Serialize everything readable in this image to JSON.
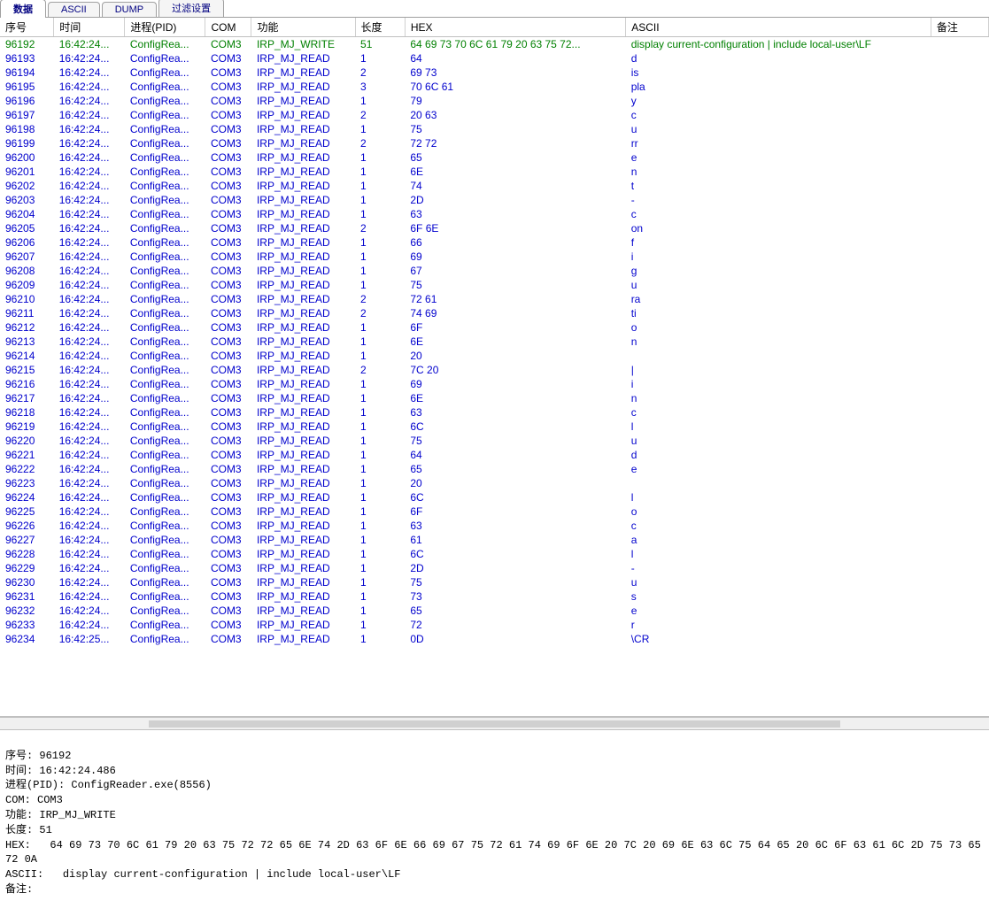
{
  "tabs": [
    {
      "label": "数据",
      "active": true
    },
    {
      "label": "ASCII",
      "active": false
    },
    {
      "label": "DUMP",
      "active": false
    },
    {
      "label": "过滤设置",
      "active": false
    }
  ],
  "columns": [
    {
      "key": "seq",
      "label": "序号",
      "class": "col-seq"
    },
    {
      "key": "time",
      "label": "时间",
      "class": "col-time"
    },
    {
      "key": "pid",
      "label": "进程(PID)",
      "class": "col-pid"
    },
    {
      "key": "com",
      "label": "COM",
      "class": "col-com"
    },
    {
      "key": "func",
      "label": "功能",
      "class": "col-func"
    },
    {
      "key": "len",
      "label": "长度",
      "class": "col-len"
    },
    {
      "key": "hex",
      "label": "HEX",
      "class": "col-hex"
    },
    {
      "key": "ascii",
      "label": "ASCII",
      "class": "col-ascii"
    },
    {
      "key": "note",
      "label": "备注",
      "class": "col-note"
    }
  ],
  "rows": [
    {
      "seq": "96192",
      "time": "16:42:24...",
      "pid": "ConfigRea...",
      "com": "COM3",
      "func": "IRP_MJ_WRITE",
      "len": "51",
      "hex": "64 69 73 70 6C 61 79 20 63 75 72...",
      "ascii": "display current-configuration | include local-user\\LF",
      "note": "",
      "color": "green"
    },
    {
      "seq": "96193",
      "time": "16:42:24...",
      "pid": "ConfigRea...",
      "com": "COM3",
      "func": "IRP_MJ_READ",
      "len": "1",
      "hex": "64",
      "ascii": "d",
      "note": "",
      "color": "blue"
    },
    {
      "seq": "96194",
      "time": "16:42:24...",
      "pid": "ConfigRea...",
      "com": "COM3",
      "func": "IRP_MJ_READ",
      "len": "2",
      "hex": "69 73",
      "ascii": "is",
      "note": "",
      "color": "blue"
    },
    {
      "seq": "96195",
      "time": "16:42:24...",
      "pid": "ConfigRea...",
      "com": "COM3",
      "func": "IRP_MJ_READ",
      "len": "3",
      "hex": "70 6C 61",
      "ascii": "pla",
      "note": "",
      "color": "blue"
    },
    {
      "seq": "96196",
      "time": "16:42:24...",
      "pid": "ConfigRea...",
      "com": "COM3",
      "func": "IRP_MJ_READ",
      "len": "1",
      "hex": "79",
      "ascii": "y",
      "note": "",
      "color": "blue"
    },
    {
      "seq": "96197",
      "time": "16:42:24...",
      "pid": "ConfigRea...",
      "com": "COM3",
      "func": "IRP_MJ_READ",
      "len": "2",
      "hex": "20 63",
      "ascii": " c",
      "note": "",
      "color": "blue"
    },
    {
      "seq": "96198",
      "time": "16:42:24...",
      "pid": "ConfigRea...",
      "com": "COM3",
      "func": "IRP_MJ_READ",
      "len": "1",
      "hex": "75",
      "ascii": "u",
      "note": "",
      "color": "blue"
    },
    {
      "seq": "96199",
      "time": "16:42:24...",
      "pid": "ConfigRea...",
      "com": "COM3",
      "func": "IRP_MJ_READ",
      "len": "2",
      "hex": "72 72",
      "ascii": "rr",
      "note": "",
      "color": "blue"
    },
    {
      "seq": "96200",
      "time": "16:42:24...",
      "pid": "ConfigRea...",
      "com": "COM3",
      "func": "IRP_MJ_READ",
      "len": "1",
      "hex": "65",
      "ascii": "e",
      "note": "",
      "color": "blue"
    },
    {
      "seq": "96201",
      "time": "16:42:24...",
      "pid": "ConfigRea...",
      "com": "COM3",
      "func": "IRP_MJ_READ",
      "len": "1",
      "hex": "6E",
      "ascii": "n",
      "note": "",
      "color": "blue"
    },
    {
      "seq": "96202",
      "time": "16:42:24...",
      "pid": "ConfigRea...",
      "com": "COM3",
      "func": "IRP_MJ_READ",
      "len": "1",
      "hex": "74",
      "ascii": "t",
      "note": "",
      "color": "blue"
    },
    {
      "seq": "96203",
      "time": "16:42:24...",
      "pid": "ConfigRea...",
      "com": "COM3",
      "func": "IRP_MJ_READ",
      "len": "1",
      "hex": "2D",
      "ascii": "-",
      "note": "",
      "color": "blue"
    },
    {
      "seq": "96204",
      "time": "16:42:24...",
      "pid": "ConfigRea...",
      "com": "COM3",
      "func": "IRP_MJ_READ",
      "len": "1",
      "hex": "63",
      "ascii": "c",
      "note": "",
      "color": "blue"
    },
    {
      "seq": "96205",
      "time": "16:42:24...",
      "pid": "ConfigRea...",
      "com": "COM3",
      "func": "IRP_MJ_READ",
      "len": "2",
      "hex": "6F 6E",
      "ascii": "on",
      "note": "",
      "color": "blue"
    },
    {
      "seq": "96206",
      "time": "16:42:24...",
      "pid": "ConfigRea...",
      "com": "COM3",
      "func": "IRP_MJ_READ",
      "len": "1",
      "hex": "66",
      "ascii": "f",
      "note": "",
      "color": "blue"
    },
    {
      "seq": "96207",
      "time": "16:42:24...",
      "pid": "ConfigRea...",
      "com": "COM3",
      "func": "IRP_MJ_READ",
      "len": "1",
      "hex": "69",
      "ascii": "i",
      "note": "",
      "color": "blue"
    },
    {
      "seq": "96208",
      "time": "16:42:24...",
      "pid": "ConfigRea...",
      "com": "COM3",
      "func": "IRP_MJ_READ",
      "len": "1",
      "hex": "67",
      "ascii": "g",
      "note": "",
      "color": "blue"
    },
    {
      "seq": "96209",
      "time": "16:42:24...",
      "pid": "ConfigRea...",
      "com": "COM3",
      "func": "IRP_MJ_READ",
      "len": "1",
      "hex": "75",
      "ascii": "u",
      "note": "",
      "color": "blue"
    },
    {
      "seq": "96210",
      "time": "16:42:24...",
      "pid": "ConfigRea...",
      "com": "COM3",
      "func": "IRP_MJ_READ",
      "len": "2",
      "hex": "72 61",
      "ascii": "ra",
      "note": "",
      "color": "blue"
    },
    {
      "seq": "96211",
      "time": "16:42:24...",
      "pid": "ConfigRea...",
      "com": "COM3",
      "func": "IRP_MJ_READ",
      "len": "2",
      "hex": "74 69",
      "ascii": "ti",
      "note": "",
      "color": "blue"
    },
    {
      "seq": "96212",
      "time": "16:42:24...",
      "pid": "ConfigRea...",
      "com": "COM3",
      "func": "IRP_MJ_READ",
      "len": "1",
      "hex": "6F",
      "ascii": "o",
      "note": "",
      "color": "blue"
    },
    {
      "seq": "96213",
      "time": "16:42:24...",
      "pid": "ConfigRea...",
      "com": "COM3",
      "func": "IRP_MJ_READ",
      "len": "1",
      "hex": "6E",
      "ascii": "n",
      "note": "",
      "color": "blue"
    },
    {
      "seq": "96214",
      "time": "16:42:24...",
      "pid": "ConfigRea...",
      "com": "COM3",
      "func": "IRP_MJ_READ",
      "len": "1",
      "hex": "20",
      "ascii": "",
      "note": "",
      "color": "blue"
    },
    {
      "seq": "96215",
      "time": "16:42:24...",
      "pid": "ConfigRea...",
      "com": "COM3",
      "func": "IRP_MJ_READ",
      "len": "2",
      "hex": "7C 20",
      "ascii": "|",
      "note": "",
      "color": "blue"
    },
    {
      "seq": "96216",
      "time": "16:42:24...",
      "pid": "ConfigRea...",
      "com": "COM3",
      "func": "IRP_MJ_READ",
      "len": "1",
      "hex": "69",
      "ascii": "i",
      "note": "",
      "color": "blue"
    },
    {
      "seq": "96217",
      "time": "16:42:24...",
      "pid": "ConfigRea...",
      "com": "COM3",
      "func": "IRP_MJ_READ",
      "len": "1",
      "hex": "6E",
      "ascii": "n",
      "note": "",
      "color": "blue"
    },
    {
      "seq": "96218",
      "time": "16:42:24...",
      "pid": "ConfigRea...",
      "com": "COM3",
      "func": "IRP_MJ_READ",
      "len": "1",
      "hex": "63",
      "ascii": "c",
      "note": "",
      "color": "blue"
    },
    {
      "seq": "96219",
      "time": "16:42:24...",
      "pid": "ConfigRea...",
      "com": "COM3",
      "func": "IRP_MJ_READ",
      "len": "1",
      "hex": "6C",
      "ascii": "l",
      "note": "",
      "color": "blue"
    },
    {
      "seq": "96220",
      "time": "16:42:24...",
      "pid": "ConfigRea...",
      "com": "COM3",
      "func": "IRP_MJ_READ",
      "len": "1",
      "hex": "75",
      "ascii": "u",
      "note": "",
      "color": "blue"
    },
    {
      "seq": "96221",
      "time": "16:42:24...",
      "pid": "ConfigRea...",
      "com": "COM3",
      "func": "IRP_MJ_READ",
      "len": "1",
      "hex": "64",
      "ascii": "d",
      "note": "",
      "color": "blue"
    },
    {
      "seq": "96222",
      "time": "16:42:24...",
      "pid": "ConfigRea...",
      "com": "COM3",
      "func": "IRP_MJ_READ",
      "len": "1",
      "hex": "65",
      "ascii": "e",
      "note": "",
      "color": "blue"
    },
    {
      "seq": "96223",
      "time": "16:42:24...",
      "pid": "ConfigRea...",
      "com": "COM3",
      "func": "IRP_MJ_READ",
      "len": "1",
      "hex": "20",
      "ascii": "",
      "note": "",
      "color": "blue"
    },
    {
      "seq": "96224",
      "time": "16:42:24...",
      "pid": "ConfigRea...",
      "com": "COM3",
      "func": "IRP_MJ_READ",
      "len": "1",
      "hex": "6C",
      "ascii": "l",
      "note": "",
      "color": "blue"
    },
    {
      "seq": "96225",
      "time": "16:42:24...",
      "pid": "ConfigRea...",
      "com": "COM3",
      "func": "IRP_MJ_READ",
      "len": "1",
      "hex": "6F",
      "ascii": "o",
      "note": "",
      "color": "blue"
    },
    {
      "seq": "96226",
      "time": "16:42:24...",
      "pid": "ConfigRea...",
      "com": "COM3",
      "func": "IRP_MJ_READ",
      "len": "1",
      "hex": "63",
      "ascii": "c",
      "note": "",
      "color": "blue"
    },
    {
      "seq": "96227",
      "time": "16:42:24...",
      "pid": "ConfigRea...",
      "com": "COM3",
      "func": "IRP_MJ_READ",
      "len": "1",
      "hex": "61",
      "ascii": "a",
      "note": "",
      "color": "blue"
    },
    {
      "seq": "96228",
      "time": "16:42:24...",
      "pid": "ConfigRea...",
      "com": "COM3",
      "func": "IRP_MJ_READ",
      "len": "1",
      "hex": "6C",
      "ascii": "l",
      "note": "",
      "color": "blue"
    },
    {
      "seq": "96229",
      "time": "16:42:24...",
      "pid": "ConfigRea...",
      "com": "COM3",
      "func": "IRP_MJ_READ",
      "len": "1",
      "hex": "2D",
      "ascii": "-",
      "note": "",
      "color": "blue"
    },
    {
      "seq": "96230",
      "time": "16:42:24...",
      "pid": "ConfigRea...",
      "com": "COM3",
      "func": "IRP_MJ_READ",
      "len": "1",
      "hex": "75",
      "ascii": "u",
      "note": "",
      "color": "blue"
    },
    {
      "seq": "96231",
      "time": "16:42:24...",
      "pid": "ConfigRea...",
      "com": "COM3",
      "func": "IRP_MJ_READ",
      "len": "1",
      "hex": "73",
      "ascii": "s",
      "note": "",
      "color": "blue"
    },
    {
      "seq": "96232",
      "time": "16:42:24...",
      "pid": "ConfigRea...",
      "com": "COM3",
      "func": "IRP_MJ_READ",
      "len": "1",
      "hex": "65",
      "ascii": "e",
      "note": "",
      "color": "blue"
    },
    {
      "seq": "96233",
      "time": "16:42:24...",
      "pid": "ConfigRea...",
      "com": "COM3",
      "func": "IRP_MJ_READ",
      "len": "1",
      "hex": "72",
      "ascii": "r",
      "note": "",
      "color": "blue"
    },
    {
      "seq": "96234",
      "time": "16:42:25...",
      "pid": "ConfigRea...",
      "com": "COM3",
      "func": "IRP_MJ_READ",
      "len": "1",
      "hex": "0D",
      "ascii": "\\CR",
      "note": "",
      "color": "blue"
    }
  ],
  "detail": {
    "labels": {
      "seq": "序号:",
      "time": "时间:",
      "pid": "进程(PID):",
      "com": "COM:",
      "func": "功能:",
      "len": "长度:",
      "hex": "HEX:",
      "ascii": "ASCII:",
      "note": "备注:"
    },
    "seq": "96192",
    "time": "16:42:24.486",
    "pid": "ConfigReader.exe(8556)",
    "com": "COM3",
    "func": "IRP_MJ_WRITE",
    "len": "51",
    "hex": "64 69 73 70 6C 61 79 20 63 75 72 72 65 6E 74 2D 63 6F 6E 66 69 67 75 72 61 74 69 6F 6E 20 7C 20 69 6E 63 6C 75 64 65 20 6C 6F 63 61 6C 2D 75 73 65 72 0A",
    "ascii": "display current-configuration | include local-user\\LF",
    "note": ""
  },
  "colors": {
    "write": "#008000",
    "read": "#0000cd",
    "header_border": "#d0d0d0",
    "panel_border": "#c0c0c0"
  }
}
